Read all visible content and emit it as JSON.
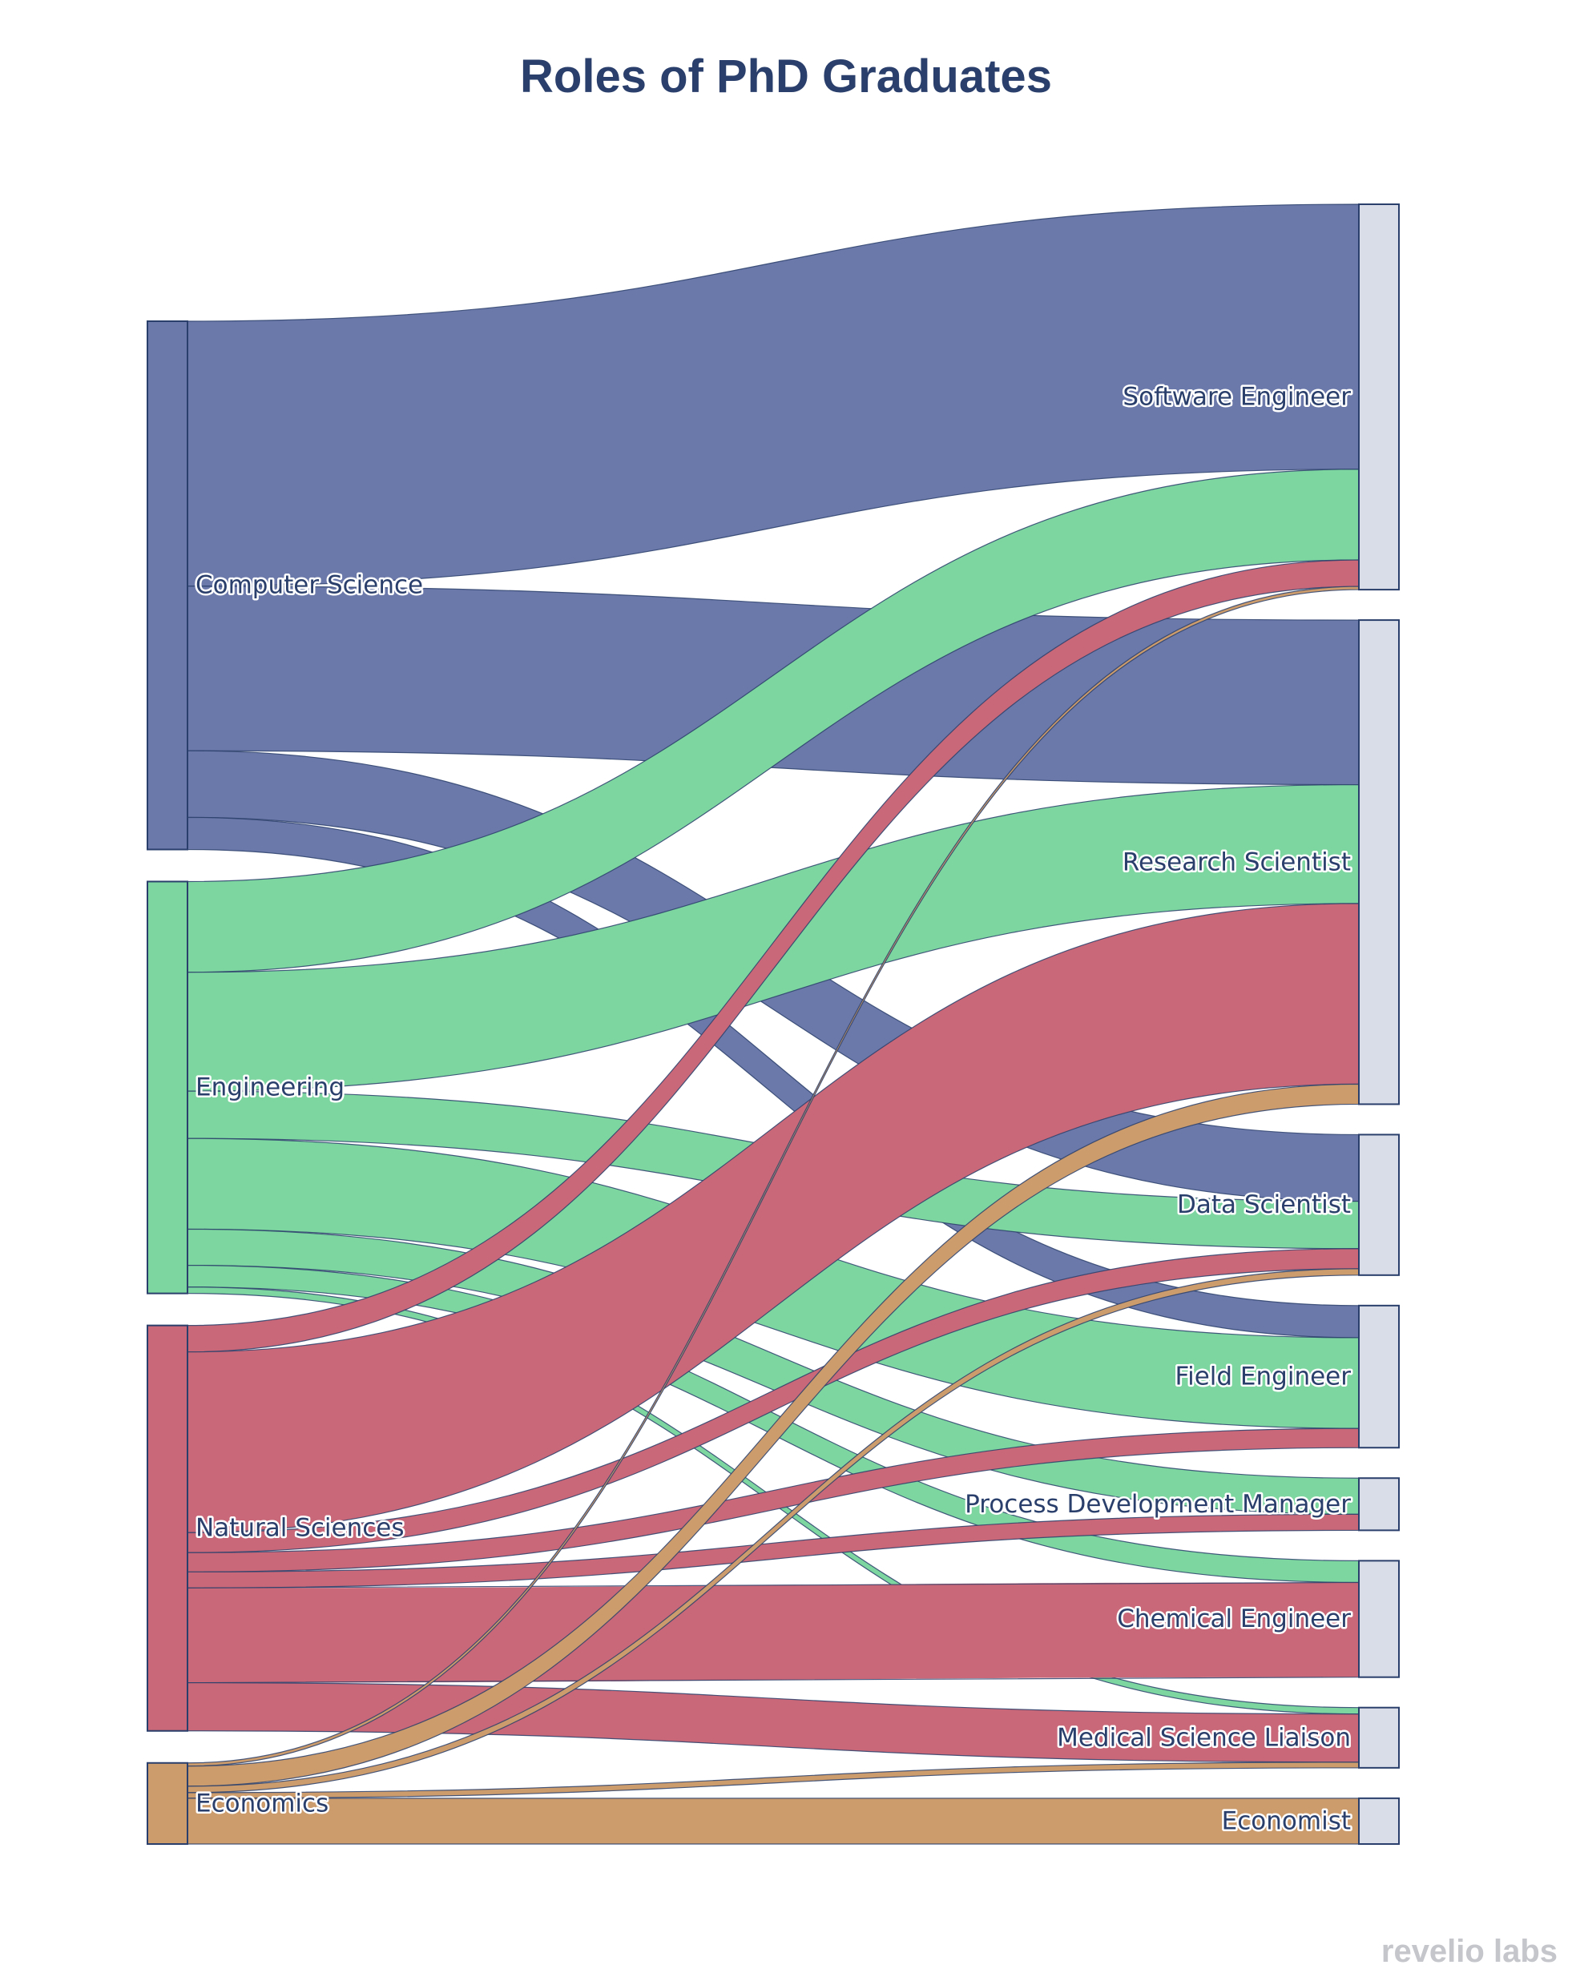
{
  "chart_data": {
    "type": "sankey",
    "title": "Roles of PhD Graduates",
    "sources": [
      {
        "name": "Computer Science",
        "color": "#6b78aa"
      },
      {
        "name": "Engineering",
        "color": "#7dd6a0"
      },
      {
        "name": "Natural Sciences",
        "color": "#c96878"
      },
      {
        "name": "Economics",
        "color": "#cc9c6c"
      }
    ],
    "targets": [
      {
        "name": "Software Engineer"
      },
      {
        "name": "Research Scientist"
      },
      {
        "name": "Data Scientist"
      },
      {
        "name": "Field Engineer"
      },
      {
        "name": "Process Development Manager"
      },
      {
        "name": "Chemical Engineer"
      },
      {
        "name": "Medical Science Liaison"
      },
      {
        "name": "Economist"
      }
    ],
    "links": [
      {
        "source": "Computer Science",
        "target": "Software Engineer",
        "value": 330
      },
      {
        "source": "Computer Science",
        "target": "Research Scientist",
        "value": 205
      },
      {
        "source": "Computer Science",
        "target": "Data Scientist",
        "value": 83
      },
      {
        "source": "Computer Science",
        "target": "Field Engineer",
        "value": 40
      },
      {
        "source": "Engineering",
        "target": "Software Engineer",
        "value": 113
      },
      {
        "source": "Engineering",
        "target": "Research Scientist",
        "value": 148
      },
      {
        "source": "Engineering",
        "target": "Data Scientist",
        "value": 59
      },
      {
        "source": "Engineering",
        "target": "Field Engineer",
        "value": 113
      },
      {
        "source": "Engineering",
        "target": "Process Development Manager",
        "value": 45
      },
      {
        "source": "Engineering",
        "target": "Chemical Engineer",
        "value": 27
      },
      {
        "source": "Engineering",
        "target": "Medical Science Liaison",
        "value": 8
      },
      {
        "source": "Natural Sciences",
        "target": "Software Engineer",
        "value": 33
      },
      {
        "source": "Natural Sciences",
        "target": "Research Scientist",
        "value": 225
      },
      {
        "source": "Natural Sciences",
        "target": "Data Scientist",
        "value": 25
      },
      {
        "source": "Natural Sciences",
        "target": "Field Engineer",
        "value": 24
      },
      {
        "source": "Natural Sciences",
        "target": "Process Development Manager",
        "value": 20
      },
      {
        "source": "Natural Sciences",
        "target": "Chemical Engineer",
        "value": 118
      },
      {
        "source": "Natural Sciences",
        "target": "Medical Science Liaison",
        "value": 60
      },
      {
        "source": "Economics",
        "target": "Software Engineer",
        "value": 4
      },
      {
        "source": "Economics",
        "target": "Research Scientist",
        "value": 25
      },
      {
        "source": "Economics",
        "target": "Data Scientist",
        "value": 8
      },
      {
        "source": "Economics",
        "target": "Medical Science Liaison",
        "value": 7
      },
      {
        "source": "Economics",
        "target": "Economist",
        "value": 57
      }
    ]
  },
  "style": {
    "title_color": "#2a3f6b",
    "label_color": "#2a3f6b",
    "node_stroke": "#2a3f6b",
    "target_fill": "#d9dde7",
    "link_stroke": "#2a3f6b"
  },
  "watermark": "revelio labs"
}
